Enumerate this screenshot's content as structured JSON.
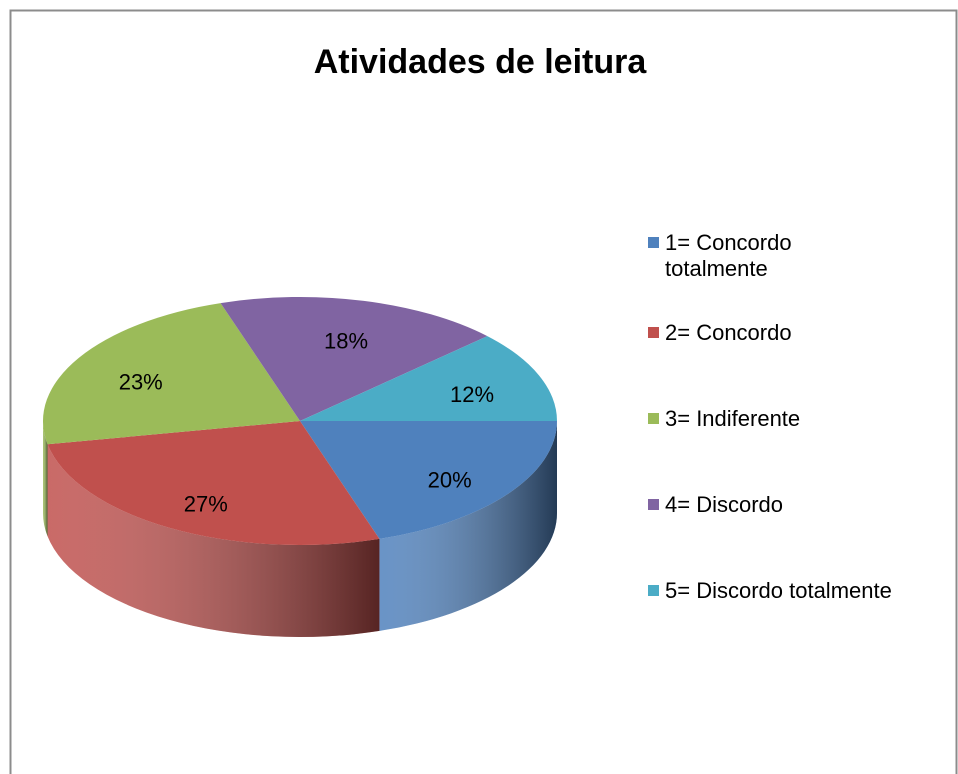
{
  "chart_data": {
    "type": "pie3d",
    "title": "Atividades de leitura",
    "categories": [
      "1= Concordo totalmente",
      "2= Concordo",
      "3= Indiferente",
      "4= Discordo",
      "5= Discordo totalmente"
    ],
    "values": [
      20,
      27,
      23,
      18,
      12
    ],
    "value_labels": [
      "20%",
      "27%",
      "23%",
      "18%",
      "12%"
    ],
    "colors": [
      "#4f81bd",
      "#c0504d",
      "#9bbb59",
      "#8064a2",
      "#4bacc6"
    ],
    "legend": "right"
  }
}
